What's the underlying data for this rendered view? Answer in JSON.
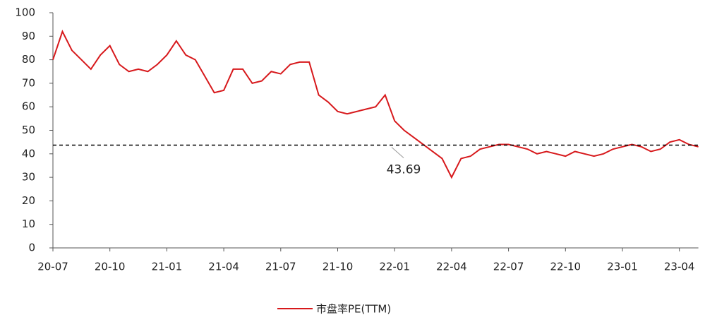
{
  "chart_data": {
    "type": "line",
    "categories": [
      "20-07",
      null,
      null,
      null,
      null,
      null,
      "20-10",
      null,
      null,
      null,
      null,
      null,
      "21-01",
      null,
      null,
      null,
      null,
      null,
      "21-04",
      null,
      null,
      null,
      null,
      null,
      "21-07",
      null,
      null,
      null,
      null,
      null,
      "21-10",
      null,
      null,
      null,
      null,
      null,
      "22-01",
      null,
      null,
      null,
      null,
      null,
      "22-04",
      null,
      null,
      null,
      null,
      null,
      "22-07",
      null,
      null,
      null,
      null,
      null,
      "22-10",
      null,
      null,
      null,
      null,
      null,
      "23-01",
      null,
      null,
      null,
      null,
      null,
      "23-04",
      null,
      null
    ],
    "series": [
      {
        "name": "市盘率PE(TTM)",
        "color": "#d7191c",
        "values": [
          80,
          92,
          84,
          80,
          76,
          82,
          86,
          78,
          75,
          76,
          75,
          78,
          82,
          88,
          82,
          80,
          73,
          66,
          67,
          76,
          76,
          70,
          71,
          75,
          74,
          78,
          79,
          79,
          65,
          62,
          58,
          57,
          58,
          59,
          60,
          65,
          54,
          50,
          47,
          44,
          41,
          38,
          30,
          38,
          39,
          42,
          43,
          44,
          44,
          43,
          42,
          40,
          41,
          40,
          39,
          41,
          40,
          39,
          40,
          42,
          43,
          44,
          43,
          41,
          42,
          45,
          46,
          44,
          43
        ]
      }
    ],
    "mean_line": {
      "value": 43.69
    },
    "ylim": [
      0,
      100
    ],
    "yticks": [
      0,
      10,
      20,
      30,
      40,
      50,
      60,
      70,
      80,
      90,
      100
    ],
    "legend": "bottom"
  }
}
